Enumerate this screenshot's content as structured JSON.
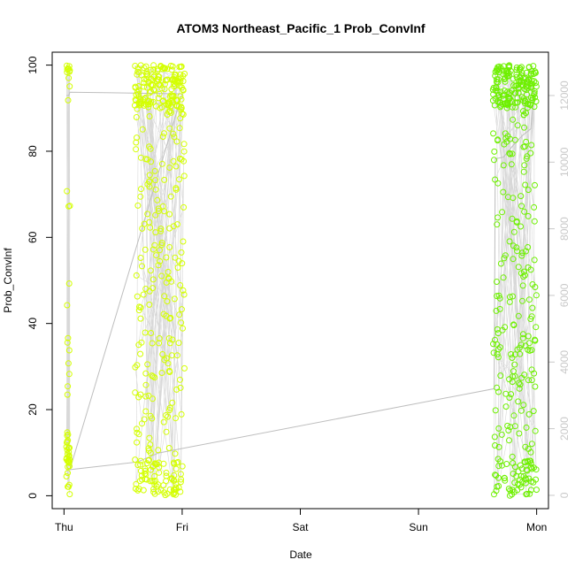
{
  "chart_data": {
    "type": "scatter",
    "title": "ATOM3 Northeast_Pacific_1 Prob_ConvInf",
    "xlabel": "Date",
    "ylabel": "Prob_ConvInf",
    "x_ticks": [
      "Thu",
      "Fri",
      "Sat",
      "Sun",
      "Mon"
    ],
    "x_tick_days": [
      0,
      1,
      2,
      3,
      4
    ],
    "xlim_days": [
      -0.1,
      4.1
    ],
    "ylim": [
      -3,
      103
    ],
    "y_ticks": [
      0,
      20,
      40,
      60,
      80,
      100
    ],
    "y2_ticks": [
      0,
      2000,
      4000,
      6000,
      8000,
      10000,
      12000
    ],
    "y2lim": [
      -400,
      13300
    ],
    "grid": false,
    "series_colors": {
      "early": "#d4ff00",
      "late": "#6ef000",
      "line": "#bebebe"
    },
    "clusters": [
      {
        "x_days": [
          0.02,
          0.05
        ],
        "n": 55,
        "dense_low": true
      },
      {
        "x_days": [
          0.6,
          1.02
        ],
        "n": 420,
        "dense_top": true
      },
      {
        "x_days": [
          3.63,
          4.0
        ],
        "n": 400,
        "dense_top": true
      }
    ],
    "secondary_line": [
      [
        0.02,
        12000
      ],
      [
        0.04,
        12000
      ],
      [
        0.05,
        12100
      ],
      [
        1.0,
        12050
      ],
      [
        0.05,
        770
      ],
      [
        0.62,
        1000
      ],
      [
        0.8,
        1270
      ],
      [
        3.64,
        3200
      ],
      [
        3.65,
        10100
      ],
      [
        3.72,
        10150
      ],
      [
        3.8,
        10500
      ],
      [
        3.88,
        10800
      ],
      [
        3.95,
        11000
      ],
      [
        3.98,
        12200
      ]
    ]
  }
}
